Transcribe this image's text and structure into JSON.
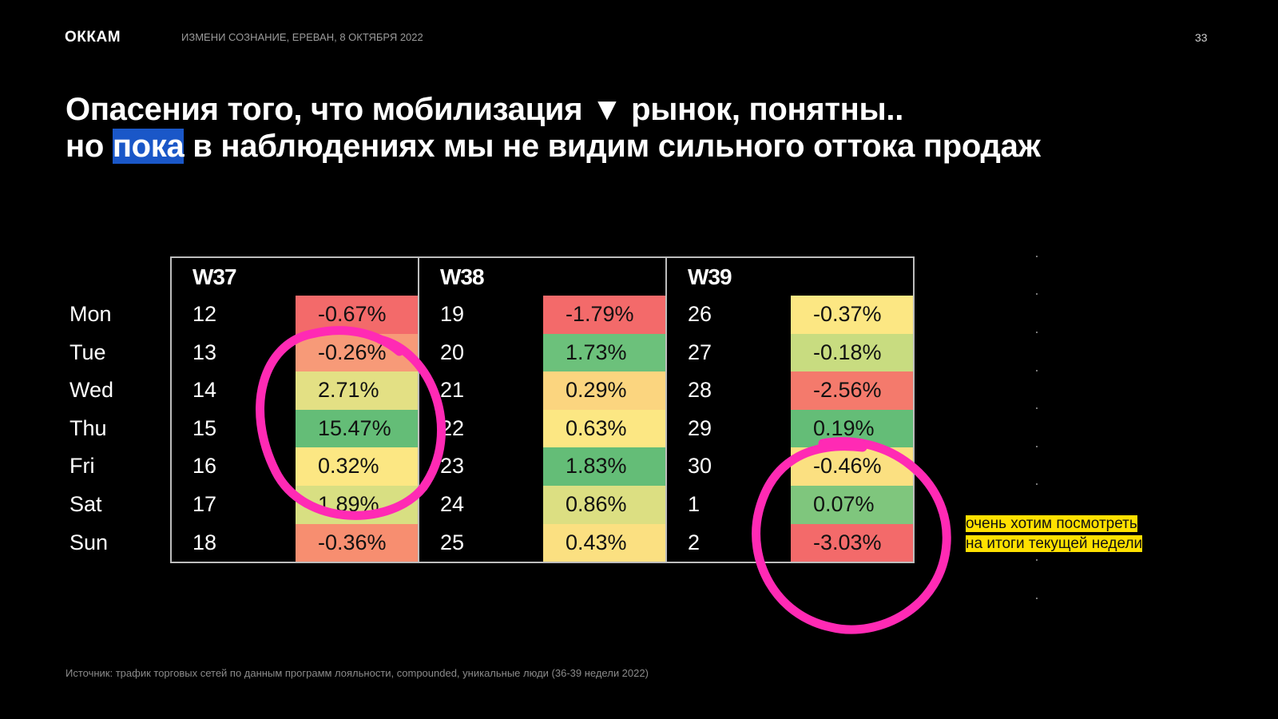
{
  "header": {
    "logo": "ОККАМ",
    "event": "ИЗМЕНИ СОЗНАНИЕ, ЕРЕВАН, 8 ОКТЯБРЯ 2022",
    "page_number": "33"
  },
  "title": {
    "line1": "Опасения того, что мобилизация ▼ рынок, понятны..",
    "line2_prefix": "но ",
    "line2_highlight": "пока",
    "line2_suffix": " в наблюдениях мы не видим сильного оттока продаж"
  },
  "days": [
    "Mon",
    "Tue",
    "Wed",
    "Thu",
    "Fri",
    "Sat",
    "Sun"
  ],
  "weeks": [
    {
      "label": "W37",
      "rows": [
        {
          "num": "12",
          "pct": "-0.67%",
          "color": "#f36a6a"
        },
        {
          "num": "13",
          "pct": "-0.26%",
          "color": "#f79a78"
        },
        {
          "num": "14",
          "pct": "2.71%",
          "color": "#e3e084"
        },
        {
          "num": "15",
          "pct": "15.47%",
          "color": "#64bd77"
        },
        {
          "num": "16",
          "pct": "0.32%",
          "color": "#fce783"
        },
        {
          "num": "17",
          "pct": "1.89%",
          "color": "#d8df82"
        },
        {
          "num": "18",
          "pct": "-0.36%",
          "color": "#f78e70"
        }
      ]
    },
    {
      "label": "W38",
      "rows": [
        {
          "num": "19",
          "pct": "-1.79%",
          "color": "#f36a6a"
        },
        {
          "num": "20",
          "pct": "1.73%",
          "color": "#6cc17b"
        },
        {
          "num": "21",
          "pct": "0.29%",
          "color": "#fbd57f"
        },
        {
          "num": "22",
          "pct": "0.63%",
          "color": "#fce783"
        },
        {
          "num": "23",
          "pct": "1.83%",
          "color": "#64bd77"
        },
        {
          "num": "24",
          "pct": "0.86%",
          "color": "#dcdf82"
        },
        {
          "num": "25",
          "pct": "0.43%",
          "color": "#fbe081"
        }
      ]
    },
    {
      "label": "W39",
      "rows": [
        {
          "num": "26",
          "pct": "-0.37%",
          "color": "#fce783"
        },
        {
          "num": "27",
          "pct": "-0.18%",
          "color": "#c8dc80"
        },
        {
          "num": "28",
          "pct": "-2.56%",
          "color": "#f47a6c"
        },
        {
          "num": "29",
          "pct": "0.19%",
          "color": "#64bd77"
        },
        {
          "num": "30",
          "pct": "-0.46%",
          "color": "#fbe081"
        },
        {
          "num": "1",
          "pct": "0.07%",
          "color": "#7fc67d"
        },
        {
          "num": "2",
          "pct": "-3.03%",
          "color": "#f36a6a"
        }
      ]
    }
  ],
  "note": {
    "line1": "очень хотим посмотреть",
    "line2": "на итоги текущей недели"
  },
  "source": "Источник: трафик торговых сетей по данным программ лояльности, compounded, уникальные люди (36-39 недели 2022)",
  "colors": {
    "highlight": "#1a57c8",
    "annotation_circle": "#ff2ab4",
    "note_bg": "#ffe100"
  }
}
